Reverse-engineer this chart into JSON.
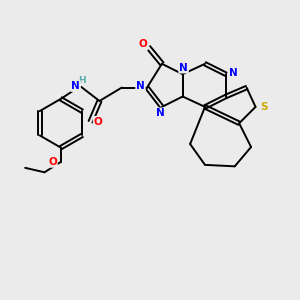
{
  "bg_color": "#ebebeb",
  "atom_colors": {
    "C": "#000000",
    "N": "#0000ff",
    "O": "#ff0000",
    "S": "#ccaa00",
    "H": "#5aacac"
  },
  "bond_color": "#000000",
  "figsize": [
    3.0,
    3.0
  ],
  "dpi": 100,
  "xlim": [
    0,
    10
  ],
  "ylim": [
    0,
    10
  ]
}
